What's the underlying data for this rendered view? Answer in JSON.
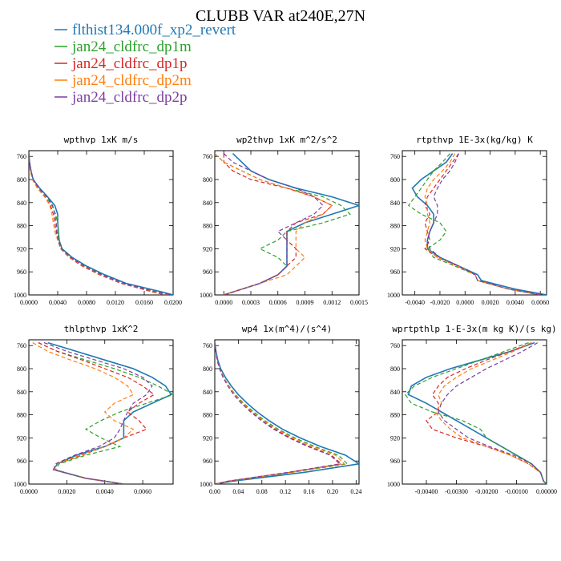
{
  "figure_title": "CLUBB VAR at240E,27N",
  "legend": [
    {
      "name": "flthist134.000f_xp2_revert",
      "color": "#1f77b4",
      "dash": "solid"
    },
    {
      "name": "jan24_cldfrc_dp1m",
      "color": "#2ca02c",
      "dash": "dashed"
    },
    {
      "name": "jan24_cldfrc_dp1p",
      "color": "#d62728",
      "dash": "dashed"
    },
    {
      "name": "jan24_cldfrc_dp2m",
      "color": "#ff7f0e",
      "dash": "dashed"
    },
    {
      "name": "jan24_cldfrc_dp2p",
      "color": "#7b3fa0",
      "dash": "dashed"
    }
  ],
  "chart_data": [
    {
      "type": "line",
      "title": "wpthvp  1xK m/s",
      "xlim": [
        0,
        0.02
      ],
      "xticks": [
        "0.0000",
        "0.0040",
        "0.0080",
        "0.0120",
        "0.0160",
        "0.0200"
      ],
      "ylim": [
        1000,
        750
      ],
      "yticks": [
        "760",
        "800",
        "840",
        "880",
        "920",
        "960",
        "1000"
      ],
      "y": [
        755,
        770,
        785,
        800,
        815,
        830,
        845,
        860,
        875,
        890,
        905,
        920,
        935,
        950,
        965,
        980,
        995,
        1000
      ],
      "series": [
        {
          "name": "flthist134.000f_xp2_revert",
          "values": [
            0.0,
            0.0001,
            0.0003,
            0.0006,
            0.0015,
            0.0026,
            0.0036,
            0.004,
            0.004,
            0.0041,
            0.0042,
            0.0046,
            0.006,
            0.008,
            0.0105,
            0.0135,
            0.0185,
            0.02
          ]
        },
        {
          "name": "jan24_cldfrc_dp1m",
          "values": [
            0.0,
            0.0001,
            0.0002,
            0.0005,
            0.0013,
            0.0024,
            0.0032,
            0.0037,
            0.004,
            0.0041,
            0.0042,
            0.0045,
            0.0058,
            0.0078,
            0.0102,
            0.013,
            0.0175,
            0.0195
          ]
        },
        {
          "name": "jan24_cldfrc_dp1p",
          "values": [
            0.0,
            0.0001,
            0.0003,
            0.0005,
            0.0012,
            0.0022,
            0.003,
            0.0034,
            0.0036,
            0.0038,
            0.004,
            0.0044,
            0.0056,
            0.0074,
            0.0098,
            0.0128,
            0.0172,
            0.019
          ]
        },
        {
          "name": "jan24_cldfrc_dp2m",
          "values": [
            0.0,
            0.0001,
            0.0002,
            0.0005,
            0.0012,
            0.0022,
            0.0029,
            0.0032,
            0.0034,
            0.0036,
            0.004,
            0.0044,
            0.0057,
            0.0076,
            0.01,
            0.013,
            0.0176,
            0.0194
          ]
        },
        {
          "name": "jan24_cldfrc_dp2p",
          "values": [
            0.0,
            0.0001,
            0.0003,
            0.0006,
            0.0014,
            0.0025,
            0.0033,
            0.0036,
            0.0038,
            0.0039,
            0.0041,
            0.0045,
            0.0058,
            0.0077,
            0.0101,
            0.0131,
            0.0178,
            0.0196
          ]
        }
      ]
    },
    {
      "type": "line",
      "title": "wp2thvp  1xK m^2/s^2",
      "xlim": [
        -0.0001,
        0.0015
      ],
      "xticks": [
        "0.0000",
        "0.0003",
        "0.0006",
        "0.0009",
        "0.0012",
        "0.0015"
      ],
      "ylim": [
        1000,
        750
      ],
      "yticks": [
        "760",
        "800",
        "840",
        "880",
        "920",
        "960",
        "1000"
      ],
      "y": [
        755,
        770,
        785,
        800,
        815,
        830,
        845,
        860,
        875,
        890,
        905,
        920,
        935,
        950,
        965,
        980,
        995,
        1000
      ],
      "series": [
        {
          "name": "flthist134.000f_xp2_revert",
          "values": [
            0.0001,
            0.0002,
            0.0003,
            0.0005,
            0.0008,
            0.0012,
            0.0015,
            0.0012,
            0.0009,
            0.0007,
            0.0007,
            0.0007,
            0.0007,
            0.0007,
            0.0006,
            0.0004,
            0.0001,
            0.0
          ]
        },
        {
          "name": "jan24_cldfrc_dp1m",
          "values": [
            -0.0001,
            0.0,
            0.0002,
            0.0004,
            0.0007,
            0.0011,
            0.0013,
            0.0014,
            0.0011,
            0.0007,
            0.0006,
            0.0004,
            0.0006,
            0.0007,
            0.0006,
            0.0004,
            0.0001,
            0.0
          ]
        },
        {
          "name": "jan24_cldfrc_dp1p",
          "values": [
            0.0,
            0.0,
            0.0001,
            0.0003,
            0.0007,
            0.001,
            0.0012,
            0.0011,
            0.0008,
            0.0007,
            0.0007,
            0.0008,
            0.0008,
            0.0007,
            0.0006,
            0.0004,
            0.0001,
            0.0
          ]
        },
        {
          "name": "jan24_cldfrc_dp2m",
          "values": [
            -0.0001,
            0.0,
            0.0002,
            0.0004,
            0.0007,
            0.001,
            0.0012,
            0.0011,
            0.0009,
            0.0008,
            0.0008,
            0.0008,
            0.0009,
            0.0008,
            0.0007,
            0.0004,
            0.0001,
            0.0
          ]
        },
        {
          "name": "jan24_cldfrc_dp2p",
          "values": [
            0.0,
            0.0001,
            0.0003,
            0.0005,
            0.0008,
            0.001,
            0.0011,
            0.001,
            0.0008,
            0.0006,
            0.0007,
            0.0007,
            0.0007,
            0.0007,
            0.0006,
            0.0004,
            0.0001,
            0.0
          ]
        }
      ]
    },
    {
      "type": "line",
      "title": "rtpthvp  1E-3x(kg/kg) K",
      "xlim": [
        -0.005,
        0.0065
      ],
      "xticks": [
        "-0.0040",
        "-0.0020",
        "0.0000",
        "0.0020",
        "0.0040",
        "0.0060"
      ],
      "ylim": [
        1000,
        750
      ],
      "yticks": [
        "760",
        "800",
        "840",
        "880",
        "920",
        "960",
        "1000"
      ],
      "y": [
        755,
        770,
        785,
        800,
        815,
        830,
        845,
        860,
        875,
        890,
        905,
        920,
        935,
        950,
        965,
        975,
        990,
        1000
      ],
      "series": [
        {
          "name": "flthist134.000f_xp2_revert",
          "values": [
            -0.001,
            -0.0015,
            -0.0025,
            -0.0035,
            -0.0042,
            -0.0038,
            -0.003,
            -0.0025,
            -0.0025,
            -0.0028,
            -0.003,
            -0.003,
            -0.002,
            -0.0005,
            0.001,
            0.0013,
            0.004,
            0.0065
          ]
        },
        {
          "name": "jan24_cldfrc_dp1m",
          "values": [
            -0.0012,
            -0.0018,
            -0.0025,
            -0.003,
            -0.0035,
            -0.004,
            -0.0045,
            -0.0035,
            -0.002,
            -0.0015,
            -0.002,
            -0.003,
            -0.0025,
            -0.0008,
            0.0008,
            0.001,
            0.0035,
            0.006
          ]
        },
        {
          "name": "jan24_cldfrc_dp1p",
          "values": [
            -0.0005,
            -0.001,
            -0.0015,
            -0.002,
            -0.0025,
            -0.003,
            -0.0032,
            -0.0028,
            -0.0032,
            -0.003,
            -0.0028,
            -0.0032,
            -0.0022,
            -0.0006,
            0.0008,
            0.001,
            0.0035,
            0.006
          ]
        },
        {
          "name": "jan24_cldfrc_dp2m",
          "values": [
            -0.0008,
            -0.0012,
            -0.0018,
            -0.0025,
            -0.003,
            -0.0032,
            -0.003,
            -0.003,
            -0.0028,
            -0.003,
            -0.0032,
            -0.003,
            -0.0022,
            -0.0006,
            0.0008,
            0.001,
            0.0035,
            0.006
          ]
        },
        {
          "name": "jan24_cldfrc_dp2p",
          "values": [
            -0.0005,
            -0.0008,
            -0.0012,
            -0.0018,
            -0.0022,
            -0.0025,
            -0.0022,
            -0.0022,
            -0.0025,
            -0.0028,
            -0.003,
            -0.0028,
            -0.002,
            -0.0005,
            0.0008,
            0.001,
            0.0035,
            0.006
          ]
        }
      ]
    },
    {
      "type": "line",
      "title": "thlpthvp  1xK^2",
      "xlim": [
        0,
        0.0076
      ],
      "xticks": [
        "0.0000",
        "0.0020",
        "0.0040",
        "0.0060"
      ],
      "ylim": [
        1000,
        750
      ],
      "yticks": [
        "760",
        "800",
        "840",
        "880",
        "920",
        "960",
        "1000"
      ],
      "y": [
        755,
        770,
        785,
        800,
        815,
        830,
        845,
        860,
        875,
        890,
        905,
        920,
        935,
        950,
        965,
        975,
        990,
        1000
      ],
      "series": [
        {
          "name": "flthist134.000f_xp2_revert",
          "values": [
            0.001,
            0.0025,
            0.004,
            0.0055,
            0.0065,
            0.0072,
            0.0075,
            0.0065,
            0.0055,
            0.005,
            0.005,
            0.005,
            0.004,
            0.0025,
            0.0015,
            0.0013,
            0.003,
            0.005
          ]
        },
        {
          "name": "jan24_cldfrc_dp1m",
          "values": [
            0.0005,
            0.0015,
            0.003,
            0.0045,
            0.0058,
            0.0068,
            0.0076,
            0.0062,
            0.0048,
            0.0038,
            0.003,
            0.0038,
            0.0048,
            0.003,
            0.0016,
            0.0014,
            0.003,
            0.005
          ]
        },
        {
          "name": "jan24_cldfrc_dp1p",
          "values": [
            0.0005,
            0.0015,
            0.0028,
            0.004,
            0.0052,
            0.006,
            0.0066,
            0.0058,
            0.0052,
            0.0058,
            0.0062,
            0.005,
            0.004,
            0.0028,
            0.0015,
            0.0013,
            0.003,
            0.005
          ]
        },
        {
          "name": "jan24_cldfrc_dp2m",
          "values": [
            0.0002,
            0.001,
            0.0022,
            0.0035,
            0.0045,
            0.0052,
            0.0055,
            0.0045,
            0.004,
            0.0045,
            0.0055,
            0.005,
            0.004,
            0.0027,
            0.0015,
            0.0013,
            0.003,
            0.005
          ]
        },
        {
          "name": "jan24_cldfrc_dp2p",
          "values": [
            0.0008,
            0.002,
            0.0035,
            0.005,
            0.006,
            0.0065,
            0.0062,
            0.0055,
            0.0052,
            0.005,
            0.0048,
            0.0045,
            0.0037,
            0.0024,
            0.0014,
            0.0013,
            0.003,
            0.005
          ]
        }
      ]
    },
    {
      "type": "line",
      "title": "wp4  1x(m^4)/(s^4)",
      "xlim": [
        0,
        0.245
      ],
      "xticks": [
        "0.00",
        "0.04",
        "0.08",
        "0.12",
        "0.16",
        "0.20",
        "0.24"
      ],
      "ylim": [
        1000,
        750
      ],
      "yticks": [
        "760",
        "800",
        "840",
        "880",
        "920",
        "960",
        "1000"
      ],
      "y": [
        755,
        770,
        785,
        800,
        815,
        830,
        845,
        860,
        875,
        890,
        905,
        920,
        935,
        950,
        965,
        980,
        995,
        1000
      ],
      "series": [
        {
          "name": "flthist134.000f_xp2_revert",
          "values": [
            0.0,
            0.002,
            0.005,
            0.01,
            0.018,
            0.028,
            0.04,
            0.055,
            0.072,
            0.092,
            0.115,
            0.145,
            0.18,
            0.222,
            0.245,
            0.15,
            0.03,
            0.0
          ]
        },
        {
          "name": "jan24_cldfrc_dp1m",
          "values": [
            0.0,
            0.002,
            0.004,
            0.008,
            0.015,
            0.024,
            0.035,
            0.049,
            0.066,
            0.085,
            0.108,
            0.136,
            0.17,
            0.21,
            0.225,
            0.13,
            0.025,
            0.0
          ]
        },
        {
          "name": "jan24_cldfrc_dp1p",
          "values": [
            0.0,
            0.002,
            0.004,
            0.008,
            0.014,
            0.023,
            0.033,
            0.046,
            0.062,
            0.08,
            0.102,
            0.128,
            0.16,
            0.198,
            0.215,
            0.125,
            0.022,
            0.0
          ]
        },
        {
          "name": "jan24_cldfrc_dp2m",
          "values": [
            0.0,
            0.002,
            0.004,
            0.008,
            0.015,
            0.024,
            0.034,
            0.047,
            0.064,
            0.082,
            0.105,
            0.132,
            0.165,
            0.205,
            0.22,
            0.128,
            0.024,
            0.0
          ]
        },
        {
          "name": "jan24_cldfrc_dp2p",
          "values": [
            0.0,
            0.002,
            0.004,
            0.008,
            0.014,
            0.022,
            0.032,
            0.045,
            0.061,
            0.079,
            0.1,
            0.126,
            0.158,
            0.196,
            0.212,
            0.122,
            0.022,
            0.0
          ]
        }
      ]
    },
    {
      "type": "line",
      "title": "wprtpthlp  1-E-3x(m kg K)/(s kg)",
      "xlim": [
        -0.0048,
        0.0
      ],
      "xticks": [
        "-0.00400",
        "-0.00300",
        "-0.00200",
        "-0.00100",
        "0.00000"
      ],
      "ylim": [
        1000,
        750
      ],
      "yticks": [
        "760",
        "800",
        "840",
        "880",
        "920",
        "960",
        "1000"
      ],
      "y": [
        755,
        770,
        785,
        800,
        815,
        830,
        845,
        860,
        875,
        890,
        905,
        920,
        935,
        950,
        965,
        980,
        995,
        1000
      ],
      "series": [
        {
          "name": "flthist134.000f_xp2_revert",
          "values": [
            -0.0004,
            -0.0012,
            -0.0022,
            -0.0032,
            -0.004,
            -0.0045,
            -0.0046,
            -0.004,
            -0.0035,
            -0.003,
            -0.0025,
            -0.002,
            -0.0015,
            -0.001,
            -0.0005,
            -0.0002,
            -0.0001,
            0.0
          ]
        },
        {
          "name": "jan24_cldfrc_dp1m",
          "values": [
            -0.0006,
            -0.0014,
            -0.0022,
            -0.003,
            -0.0038,
            -0.0044,
            -0.0047,
            -0.0045,
            -0.0038,
            -0.0028,
            -0.0022,
            -0.002,
            -0.0015,
            -0.001,
            -0.0005,
            -0.0002,
            -0.0001,
            0.0
          ]
        },
        {
          "name": "jan24_cldfrc_dp1p",
          "values": [
            -0.0005,
            -0.0012,
            -0.002,
            -0.0027,
            -0.0033,
            -0.0036,
            -0.0038,
            -0.0036,
            -0.0036,
            -0.004,
            -0.0038,
            -0.003,
            -0.002,
            -0.0012,
            -0.0006,
            -0.0002,
            -0.0001,
            0.0
          ]
        },
        {
          "name": "jan24_cldfrc_dp2m",
          "values": [
            -0.0005,
            -0.0011,
            -0.0018,
            -0.0025,
            -0.003,
            -0.0034,
            -0.0036,
            -0.0035,
            -0.0037,
            -0.0035,
            -0.0032,
            -0.0028,
            -0.002,
            -0.0012,
            -0.0006,
            -0.0002,
            -0.0001,
            0.0
          ]
        },
        {
          "name": "jan24_cldfrc_dp2p",
          "values": [
            -0.0003,
            -0.0008,
            -0.0014,
            -0.002,
            -0.0025,
            -0.003,
            -0.0033,
            -0.0035,
            -0.0036,
            -0.0034,
            -0.003,
            -0.0026,
            -0.0019,
            -0.0011,
            -0.0005,
            -0.0002,
            -0.0001,
            0.0
          ]
        }
      ]
    }
  ]
}
